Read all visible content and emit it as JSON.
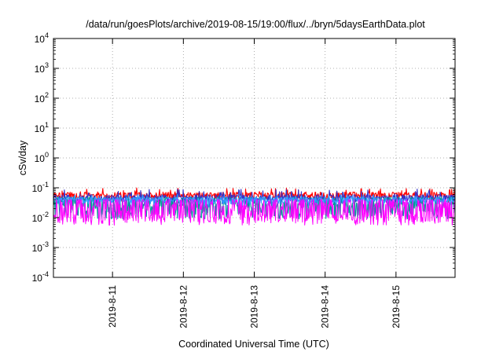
{
  "chart_data": {
    "type": "line",
    "title": "/data/run/goesPlots/archive/2019-08-15/19:00/flux/../bryn/5daysEarthData.plot",
    "xlabel": "Coordinated Universal Time (UTC)",
    "ylabel": "cSv/day",
    "yscale": "log",
    "ylim": [
      0.0001,
      10000
    ],
    "xlim": [
      "2019-08-10T04:00",
      "2019-08-15T20:00"
    ],
    "grid": true,
    "x_ticks": [
      {
        "x": "2019-08-11T00:00",
        "label": "2019-8-11"
      },
      {
        "x": "2019-08-12T00:00",
        "label": "2019-8-12"
      },
      {
        "x": "2019-08-13T00:00",
        "label": "2019-8-13"
      },
      {
        "x": "2019-08-14T00:00",
        "label": "2019-8-14"
      },
      {
        "x": "2019-08-15T00:00",
        "label": "2019-8-15"
      }
    ],
    "y_ticks": [
      {
        "value": 0.0001,
        "base": "10",
        "exp": "-4"
      },
      {
        "value": 0.001,
        "base": "10",
        "exp": "-3"
      },
      {
        "value": 0.01,
        "base": "10",
        "exp": "-2"
      },
      {
        "value": 0.1,
        "base": "10",
        "exp": "-1"
      },
      {
        "value": 1,
        "base": "10",
        "exp": "0"
      },
      {
        "value": 10,
        "base": "10",
        "exp": "1"
      },
      {
        "value": 100,
        "base": "10",
        "exp": "2"
      },
      {
        "value": 1000,
        "base": "10",
        "exp": "3"
      },
      {
        "value": 10000,
        "base": "10",
        "exp": "4"
      }
    ],
    "series": [
      {
        "color": "#ff0000",
        "typical": 0.055,
        "low": 0.035,
        "high": 0.1
      },
      {
        "color": "#3333cc",
        "typical": 0.045,
        "low": 0.03,
        "high": 0.09
      },
      {
        "color": "#009999",
        "typical": 0.025,
        "low": 0.01,
        "high": 0.05
      },
      {
        "color": "#3399ff",
        "typical": 0.038,
        "low": 0.025,
        "high": 0.06
      },
      {
        "color": "#ff00ff",
        "typical": 0.008,
        "low": 0.005,
        "high": 0.04
      }
    ]
  }
}
